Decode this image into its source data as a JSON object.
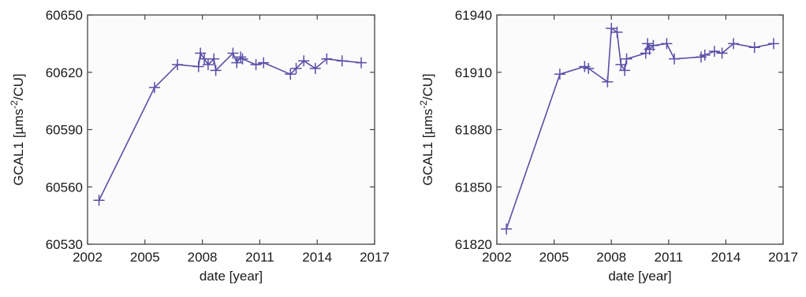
{
  "chart_data": [
    {
      "type": "line",
      "xlabel": "date [year]",
      "ylabel": "GCAL1 [µms-2/CU]",
      "ylabel_parts": {
        "pre": "GCAL1 [µms",
        "sup": "-2",
        "post": "/CU]"
      },
      "xlim": [
        2002,
        2017
      ],
      "ylim": [
        60530,
        60650
      ],
      "xticks": [
        "2002",
        "2005",
        "2008",
        "2011",
        "2014",
        "2017"
      ],
      "yticks": [
        "60530",
        "60560",
        "60590",
        "60620",
        "60650"
      ],
      "line_color": "#5a4fa8",
      "grid": false,
      "series": [
        {
          "marker": "plus",
          "x": [
            2002.6,
            2005.5,
            2006.7,
            2007.8,
            2007.9,
            2008.1,
            2008.3,
            2008.6,
            2008.7,
            2009.6,
            2009.8,
            2010.0,
            2010.1,
            2010.8,
            2011.2,
            2012.6,
            2012.9,
            2013.3,
            2013.9,
            2014.5,
            2015.3,
            2016.3
          ],
          "y": [
            60553,
            60612,
            60624,
            60623,
            60630,
            60627,
            60624,
            60627,
            60621,
            60630,
            60625,
            60628,
            60627,
            60624,
            60625,
            60619,
            60622,
            60626,
            60622,
            60627,
            60626,
            60625
          ]
        }
      ]
    },
    {
      "type": "line",
      "xlabel": "date [year]",
      "ylabel": "GCAL1 [µms-2/CU]",
      "ylabel_parts": {
        "pre": "GCAL1 [µms",
        "sup": "-2",
        "post": "/CU]"
      },
      "xlim": [
        2002,
        2017
      ],
      "ylim": [
        61820,
        61940
      ],
      "xticks": [
        "2002",
        "2005",
        "2008",
        "2011",
        "2014",
        "2017"
      ],
      "yticks": [
        "61820",
        "61850",
        "61880",
        "61910",
        "61940"
      ],
      "line_color": "#5a4fa8",
      "grid": false,
      "series": [
        {
          "marker": "plus",
          "x": [
            2002.5,
            2005.3,
            2006.6,
            2006.8,
            2007.8,
            2008.0,
            2008.3,
            2008.5,
            2008.7,
            2008.8,
            2009.8,
            2009.9,
            2010.0,
            2010.2,
            2010.9,
            2011.3,
            2012.7,
            2012.9,
            2013.4,
            2013.8,
            2014.4,
            2015.5,
            2016.5
          ],
          "y": [
            61828,
            61909,
            61913,
            61912,
            61905,
            61933,
            61931,
            61914,
            61911,
            61917,
            61920,
            61925,
            61922,
            61924,
            61925,
            61917,
            61918,
            61919,
            61921,
            61920,
            61925,
            61923,
            61925
          ]
        }
      ]
    }
  ]
}
